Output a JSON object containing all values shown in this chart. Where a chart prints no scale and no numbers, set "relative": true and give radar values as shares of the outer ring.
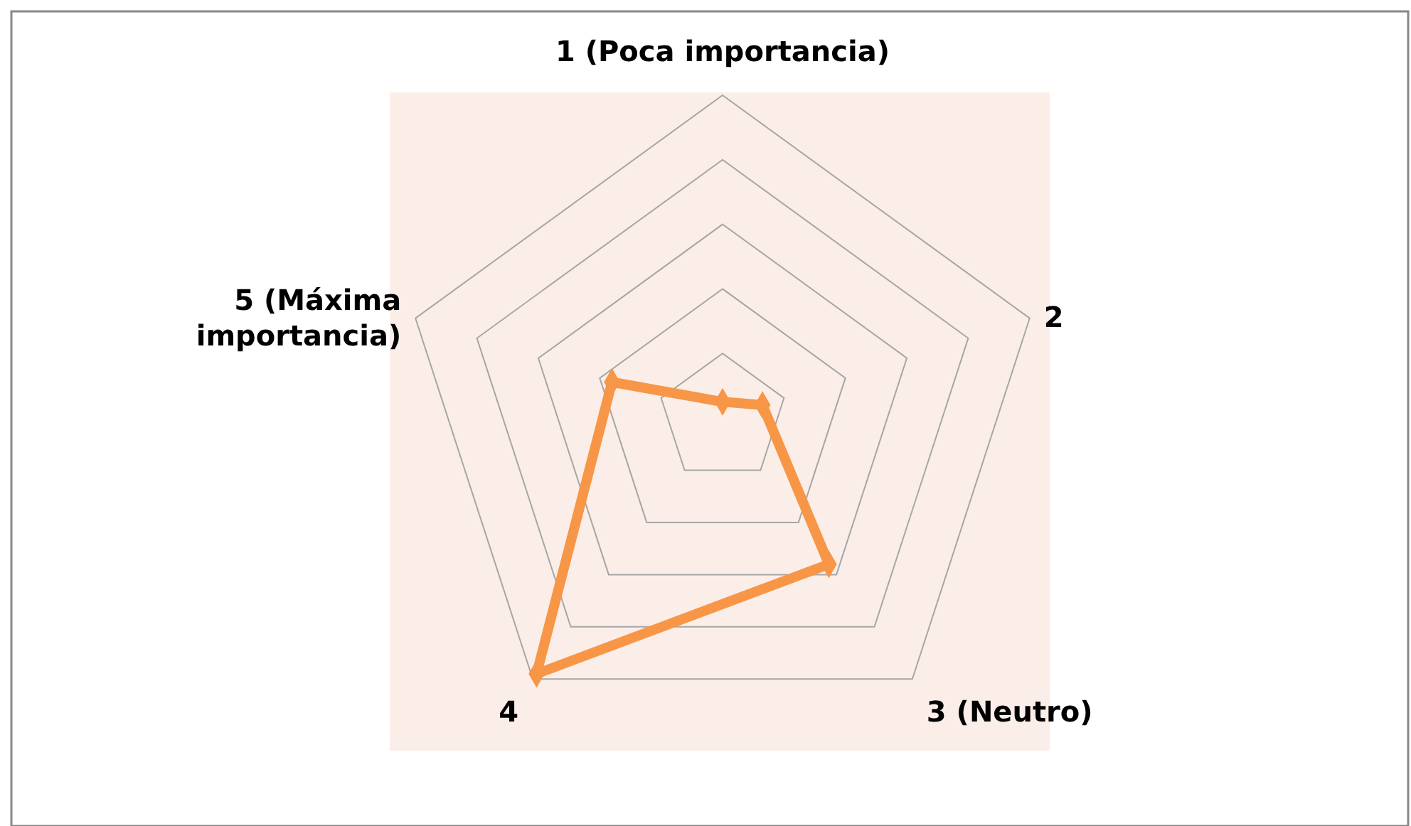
{
  "chart_data": {
    "type": "radar",
    "categories": [
      "1 (Poca importancia)",
      "2",
      "3 (Neutro)",
      "4",
      "5 (Máxima importancia)"
    ],
    "relative": true,
    "grid": true,
    "marker": "diamond",
    "series": [
      {
        "color": "#f79646",
        "values": [
          0.05,
          0.13,
          0.56,
          0.98,
          0.36
        ]
      }
    ]
  }
}
